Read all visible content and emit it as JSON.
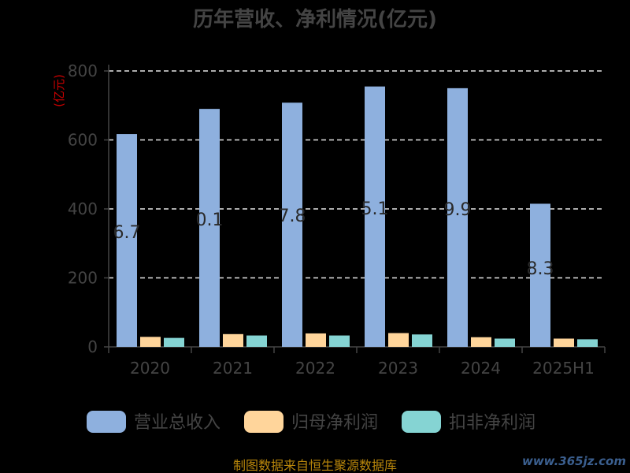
{
  "chart_data": {
    "type": "bar",
    "title": "历年营收、净利情况(亿元)",
    "ylabel": "(亿元)",
    "categories": [
      "2020",
      "2021",
      "2022",
      "2023",
      "2024",
      "2025H1"
    ],
    "ylim": [
      0,
      800
    ],
    "yticks": [
      0,
      200,
      400,
      600,
      800
    ],
    "grid": true,
    "legend_position": "bottom",
    "series": [
      {
        "name": "营业总收入",
        "color": "#8eb0de",
        "values": [
          617,
          690,
          708,
          755,
          750,
          415
        ]
      },
      {
        "name": "归母净利润",
        "color": "#ffd59b",
        "values": [
          29,
          37,
          39,
          40,
          28,
          24
        ]
      },
      {
        "name": "扣非净利润",
        "color": "#85d4d3",
        "values": [
          26,
          33,
          33,
          36,
          24,
          22
        ]
      }
    ],
    "data_labels": [
      "6.7",
      "0.1",
      "7.8",
      "5.1",
      "9.9",
      "8.3"
    ]
  },
  "footer": "制图数据来自恒生聚源数据库",
  "watermark": "www.365jz.com"
}
